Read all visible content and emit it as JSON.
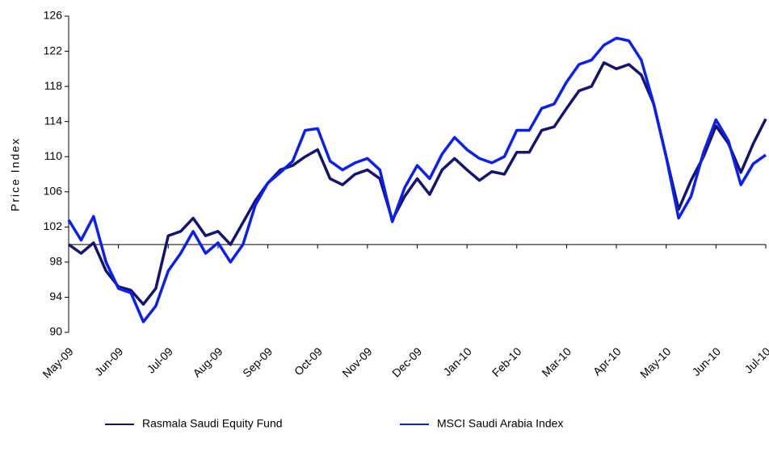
{
  "chart_data": {
    "type": "line",
    "y_label": "Price Index",
    "categories": [
      "May-09",
      null,
      null,
      null,
      "Jun-09",
      null,
      null,
      null,
      "Jul-09",
      null,
      null,
      null,
      "Aug-09",
      null,
      null,
      null,
      "Sep-09",
      null,
      null,
      null,
      "Oct-09",
      null,
      null,
      null,
      "Nov-09",
      null,
      null,
      null,
      "Dec-09",
      null,
      null,
      null,
      "Jan-10",
      null,
      null,
      null,
      "Feb-10",
      null,
      null,
      null,
      "Mar-10",
      null,
      null,
      null,
      "Apr-10",
      null,
      null,
      null,
      "May-10",
      null,
      null,
      null,
      "Jun-10",
      null,
      null,
      null,
      "Jul-10"
    ],
    "series": [
      {
        "name": "Rasmala Saudi Equity Fund",
        "color": "#14146e",
        "values": [
          100,
          99,
          100.2,
          97,
          95.2,
          94.8,
          93.2,
          95,
          101,
          101.5,
          103,
          101,
          101.5,
          100,
          102.5,
          105,
          107,
          108.5,
          109,
          110,
          110.8,
          107.5,
          106.8,
          108,
          108.5,
          107.5,
          102.8,
          105.5,
          107.5,
          105.7,
          108.5,
          109.8,
          108.5,
          107.3,
          108.3,
          108,
          110.5,
          110.5,
          113,
          113.4,
          115.5,
          117.5,
          118,
          120.7,
          120,
          120.5,
          119.3,
          116,
          110,
          104,
          107.3,
          110,
          113.5,
          111.5,
          108.2,
          111.5,
          114.3
        ]
      },
      {
        "name": "MSCI Saudi Arabia Index",
        "color": "#0d1ff0",
        "values": [
          102.8,
          100.5,
          103.2,
          98,
          95,
          94.5,
          91.2,
          93,
          97,
          99,
          101.5,
          99,
          100.2,
          98,
          100,
          104.5,
          107,
          108.2,
          109.5,
          113,
          113.2,
          109.5,
          108.5,
          109.3,
          109.8,
          108.5,
          102.6,
          106.5,
          109,
          107.5,
          110.3,
          112.2,
          110.8,
          109.8,
          109.3,
          110,
          113,
          113,
          115.5,
          116,
          118.5,
          120.5,
          121,
          122.7,
          123.5,
          123.2,
          121,
          116,
          110,
          103,
          105.5,
          110.5,
          114.2,
          111.8,
          106.8,
          109.2,
          110.2
        ]
      }
    ],
    "ylim": [
      90,
      126
    ],
    "yticks": [
      90,
      94,
      98,
      102,
      106,
      110,
      114,
      118,
      122,
      126
    ],
    "baseline": 100,
    "legend": "bottom"
  }
}
